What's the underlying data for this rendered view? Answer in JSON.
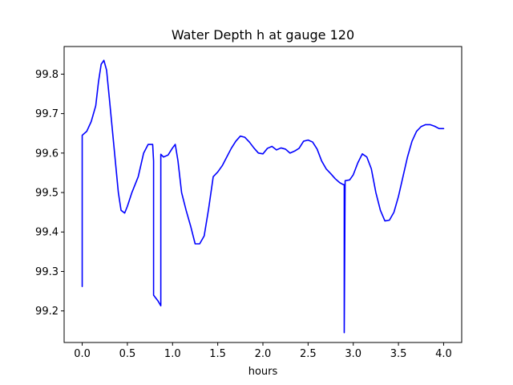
{
  "chart_data": {
    "type": "line",
    "title": "Water Depth h at gauge 120",
    "xlabel": "hours",
    "ylabel": "",
    "xlim": [
      -0.2,
      4.2
    ],
    "ylim": [
      99.12,
      99.87
    ],
    "xticks": [
      0.0,
      0.5,
      1.0,
      1.5,
      2.0,
      2.5,
      3.0,
      3.5,
      4.0
    ],
    "xtick_labels": [
      "0.0",
      "0.5",
      "1.0",
      "1.5",
      "2.0",
      "2.5",
      "3.0",
      "3.5",
      "4.0"
    ],
    "yticks": [
      99.2,
      99.3,
      99.4,
      99.5,
      99.6,
      99.7,
      99.8
    ],
    "ytick_labels": [
      "99.2",
      "99.3",
      "99.4",
      "99.5",
      "99.6",
      "99.7",
      "99.8"
    ],
    "grid": false,
    "series": [
      {
        "color": "#0000ff",
        "x": [
          0.0,
          0.0,
          0.05,
          0.1,
          0.15,
          0.18,
          0.21,
          0.24,
          0.27,
          0.3,
          0.35,
          0.4,
          0.43,
          0.47,
          0.5,
          0.55,
          0.62,
          0.68,
          0.73,
          0.78,
          0.79,
          0.79,
          0.84,
          0.87,
          0.87,
          0.9,
          0.95,
          1.0,
          1.03,
          1.06,
          1.1,
          1.15,
          1.2,
          1.25,
          1.3,
          1.35,
          1.4,
          1.45,
          1.5,
          1.55,
          1.6,
          1.65,
          1.7,
          1.75,
          1.8,
          1.85,
          1.9,
          1.95,
          2.0,
          2.05,
          2.1,
          2.15,
          2.2,
          2.25,
          2.3,
          2.35,
          2.4,
          2.45,
          2.5,
          2.55,
          2.6,
          2.65,
          2.7,
          2.75,
          2.8,
          2.85,
          2.89,
          2.9,
          2.9,
          2.91,
          2.96,
          3.0,
          3.05,
          3.1,
          3.15,
          3.2,
          3.25,
          3.3,
          3.35,
          3.4,
          3.45,
          3.5,
          3.55,
          3.6,
          3.65,
          3.7,
          3.75,
          3.8,
          3.85,
          3.9,
          3.95,
          4.0
        ],
        "y": [
          99.262,
          99.645,
          99.655,
          99.68,
          99.72,
          99.78,
          99.825,
          99.835,
          99.81,
          99.74,
          99.62,
          99.5,
          99.455,
          99.448,
          99.465,
          99.5,
          99.54,
          99.6,
          99.622,
          99.622,
          99.58,
          99.24,
          99.225,
          99.213,
          99.597,
          99.59,
          99.595,
          99.613,
          99.622,
          99.58,
          99.5,
          99.455,
          99.415,
          99.37,
          99.37,
          99.39,
          99.46,
          99.54,
          99.552,
          99.568,
          99.59,
          99.612,
          99.63,
          99.643,
          99.64,
          99.628,
          99.613,
          99.6,
          99.598,
          99.612,
          99.617,
          99.608,
          99.613,
          99.61,
          99.6,
          99.605,
          99.612,
          99.63,
          99.633,
          99.628,
          99.61,
          99.58,
          99.56,
          99.548,
          99.535,
          99.525,
          99.52,
          99.52,
          99.145,
          99.53,
          99.532,
          99.545,
          99.575,
          99.598,
          99.59,
          99.56,
          99.5,
          99.455,
          99.428,
          99.43,
          99.45,
          99.49,
          99.54,
          99.59,
          99.63,
          99.655,
          99.667,
          99.672,
          99.672,
          99.668,
          99.662,
          99.662
        ]
      }
    ]
  }
}
